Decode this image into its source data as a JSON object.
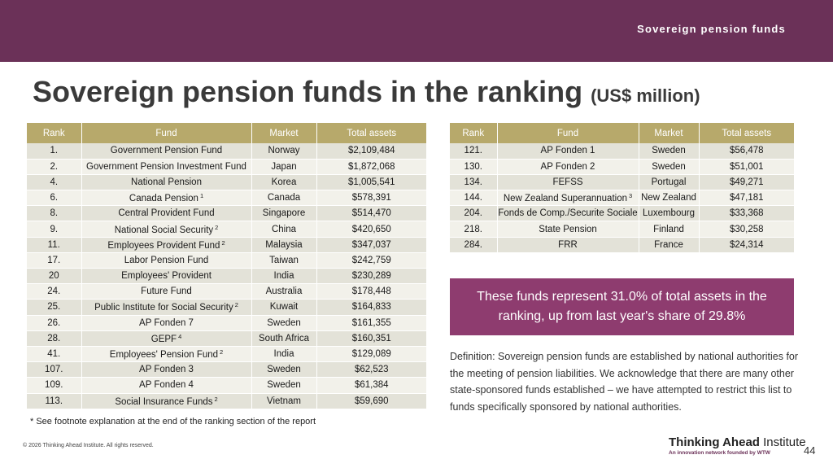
{
  "banner": {
    "label": "Sovereign pension funds"
  },
  "title": {
    "main": "Sovereign pension funds in the ranking",
    "unit": "(US$ million)"
  },
  "columns": {
    "rank": "Rank",
    "fund": "Fund",
    "market": "Market",
    "assets": "Total assets"
  },
  "left_table": [
    {
      "rank": "1.",
      "fund": "Government Pension Fund",
      "sup": "",
      "market": "Norway",
      "assets": "$2,109,484"
    },
    {
      "rank": "2.",
      "fund": "Government Pension Investment Fund",
      "sup": "",
      "market": "Japan",
      "assets": "$1,872,068"
    },
    {
      "rank": "4.",
      "fund": "National Pension",
      "sup": "",
      "market": "Korea",
      "assets": "$1,005,541"
    },
    {
      "rank": "6.",
      "fund": "Canada Pension",
      "sup": "1",
      "market": "Canada",
      "assets": "$578,391"
    },
    {
      "rank": "8.",
      "fund": "Central Provident Fund",
      "sup": "",
      "market": "Singapore",
      "assets": "$514,470"
    },
    {
      "rank": "9.",
      "fund": "National Social Security",
      "sup": "2",
      "market": "China",
      "assets": "$420,650"
    },
    {
      "rank": "11.",
      "fund": "Employees Provident Fund",
      "sup": "2",
      "market": "Malaysia",
      "assets": "$347,037"
    },
    {
      "rank": "17.",
      "fund": "Labor Pension Fund",
      "sup": "",
      "market": "Taiwan",
      "assets": "$242,759"
    },
    {
      "rank": "20",
      "fund": "Employees' Provident",
      "sup": "",
      "market": "India",
      "assets": "$230,289"
    },
    {
      "rank": "24.",
      "fund": "Future Fund",
      "sup": "",
      "market": "Australia",
      "assets": "$178,448"
    },
    {
      "rank": "25.",
      "fund": "Public Institute for Social Security",
      "sup": "2",
      "market": "Kuwait",
      "assets": "$164,833"
    },
    {
      "rank": "26.",
      "fund": "AP Fonden 7",
      "sup": "",
      "market": "Sweden",
      "assets": "$161,355"
    },
    {
      "rank": "28.",
      "fund": "GEPF",
      "sup": "4",
      "market": "South Africa",
      "assets": "$160,351"
    },
    {
      "rank": "41.",
      "fund": "Employees' Pension Fund",
      "sup": "2",
      "market": "India",
      "assets": "$129,089"
    },
    {
      "rank": "107.",
      "fund": "AP Fonden 3",
      "sup": "",
      "market": "Sweden",
      "assets": "$62,523"
    },
    {
      "rank": "109.",
      "fund": "AP Fonden 4",
      "sup": "",
      "market": "Sweden",
      "assets": "$61,384"
    },
    {
      "rank": "113.",
      "fund": "Social Insurance Funds",
      "sup": "2",
      "market": "Vietnam",
      "assets": "$59,690"
    }
  ],
  "right_table": [
    {
      "rank": "121.",
      "fund": "AP Fonden 1",
      "sup": "",
      "market": "Sweden",
      "assets": "$56,478"
    },
    {
      "rank": "130.",
      "fund": "AP Fonden 2",
      "sup": "",
      "market": "Sweden",
      "assets": "$51,001"
    },
    {
      "rank": "134.",
      "fund": "FEFSS",
      "sup": "",
      "market": "Portugal",
      "assets": "$49,271"
    },
    {
      "rank": "144.",
      "fund": "New Zealand Superannuation",
      "sup": "3",
      "market": "New Zealand",
      "assets": "$47,181"
    },
    {
      "rank": "204.",
      "fund": "Fonds de Comp./Securite Sociale",
      "sup": "",
      "market": "Luxembourg",
      "assets": "$33,368"
    },
    {
      "rank": "218.",
      "fund": "State Pension",
      "sup": "",
      "market": "Finland",
      "assets": "$30,258"
    },
    {
      "rank": "284.",
      "fund": "FRR",
      "sup": "",
      "market": "France",
      "assets": "$24,314"
    }
  ],
  "footnote": "* See footnote explanation at the end of the ranking section of the report",
  "highlight": "These funds represent 31.0% of total assets in the ranking, up from last year's share of 29.8%",
  "definition": "Definition: Sovereign pension funds are established by national authorities for the meeting of pension liabilities. We acknowledge that there are many other state-sponsored funds established – we have attempted to restrict this list to funds specifically sponsored by national authorities.",
  "copyright": "© 2026 Thinking Ahead Institute. All rights reserved.",
  "logo": {
    "bold": "Thinking Ahead",
    "regular": "Institute",
    "tagline": "An innovation network founded by WTW"
  },
  "page_number": "44"
}
